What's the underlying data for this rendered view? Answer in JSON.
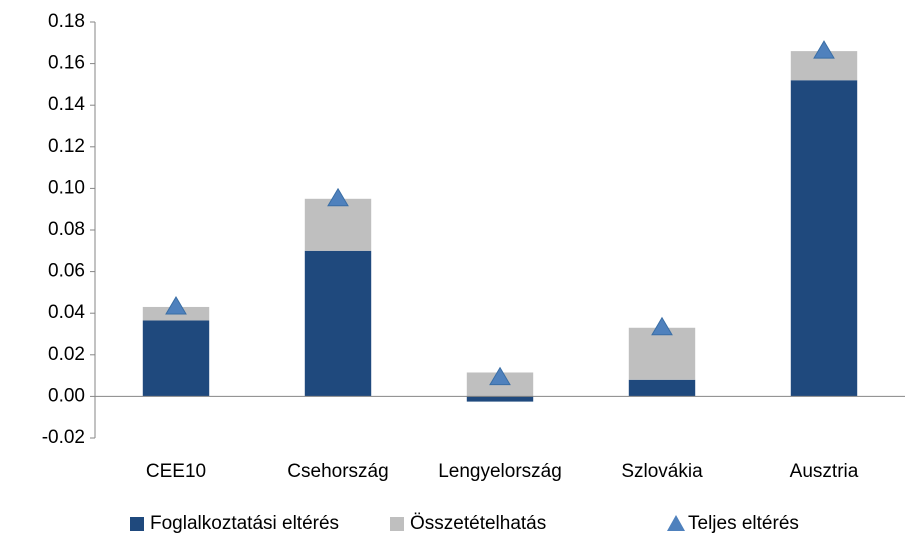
{
  "chart_data": {
    "type": "stacked_bar",
    "categories": [
      "CEE10",
      "Csehország",
      "Lengyelország",
      "Szlovákia",
      "Ausztria"
    ],
    "series": [
      {
        "name": "Foglalkoztatási eltérés",
        "type": "bar",
        "color": "#1f497d",
        "values": [
          0.0365,
          0.07,
          -0.0025,
          0.008,
          0.152
        ]
      },
      {
        "name": "Összetételhatás",
        "type": "bar",
        "color": "#bfbfbf",
        "values": [
          0.0065,
          0.025,
          0.0115,
          0.025,
          0.014
        ]
      },
      {
        "name": "Teljes eltérés",
        "type": "scatter",
        "marker": "triangle",
        "color": "#4f81bd",
        "values": [
          0.043,
          0.095,
          0.009,
          0.033,
          0.166
        ]
      }
    ],
    "ylim": [
      -0.02,
      0.18
    ],
    "yticks": [
      -0.02,
      {
        "value": 0,
        "label": "0.00"
      },
      0.02,
      0.04,
      0.06,
      0.08,
      {
        "value": 0.1,
        "label": "0.10"
      },
      0.12,
      0.14,
      0.16,
      0.18
    ],
    "grid": false,
    "legend": "bottom"
  }
}
